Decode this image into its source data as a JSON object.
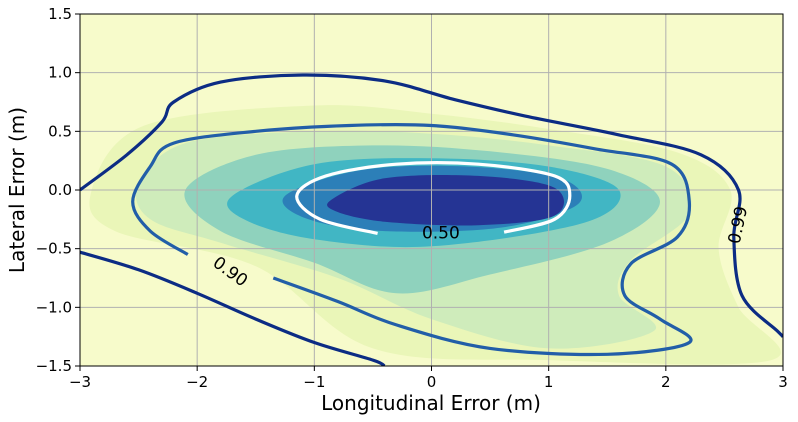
{
  "chart_data": {
    "type": "contour",
    "xlabel": "Longitudinal Error (m)",
    "ylabel": "Lateral Error (m)",
    "xlim": [
      -3,
      3
    ],
    "ylim": [
      -1.5,
      1.5
    ],
    "x_ticks": [
      -3,
      -2,
      -1,
      0,
      1,
      2,
      3
    ],
    "x_tick_labels": [
      "−3",
      "−2",
      "−1",
      "0",
      "1",
      "2",
      "3"
    ],
    "y_ticks": [
      -1.5,
      -1.0,
      -0.5,
      0.0,
      0.5,
      1.0,
      1.5
    ],
    "y_tick_labels": [
      "−1.5",
      "−1.0",
      "−0.5",
      "0.0",
      "0.5",
      "1.0",
      "1.5"
    ],
    "grid": true,
    "colormap": "YlGnBu",
    "background_color": "#f7fbcb",
    "filled_levels": [
      {
        "color": "#eaf6b8",
        "points": [
          [
            -2.45,
            0.55
          ],
          [
            -1.0,
            0.72
          ],
          [
            0.0,
            0.65
          ],
          [
            1.0,
            0.52
          ],
          [
            2.1,
            0.32
          ],
          [
            2.55,
            0.0
          ],
          [
            2.45,
            -0.5
          ],
          [
            2.62,
            -1.0
          ],
          [
            2.9,
            -1.45
          ],
          [
            1.0,
            -1.45
          ],
          [
            -0.5,
            -1.35
          ],
          [
            -1.5,
            -0.65
          ],
          [
            -2.7,
            -0.35
          ],
          [
            -2.9,
            0.0
          ]
        ]
      },
      {
        "color": "#cfecbb",
        "points": [
          [
            -2.5,
            0.05
          ],
          [
            -2.1,
            0.4
          ],
          [
            -1.0,
            0.5
          ],
          [
            0.0,
            0.48
          ],
          [
            1.0,
            0.38
          ],
          [
            2.0,
            0.2
          ],
          [
            2.2,
            -0.2
          ],
          [
            1.7,
            -0.6
          ],
          [
            1.6,
            -0.9
          ],
          [
            1.9,
            -1.2
          ],
          [
            1.0,
            -1.35
          ],
          [
            0.0,
            -1.1
          ],
          [
            -0.8,
            -0.75
          ],
          [
            -1.8,
            -0.45
          ],
          [
            -2.4,
            -0.25
          ]
        ]
      },
      {
        "color": "#8fd2bd",
        "points": [
          [
            -2.1,
            0.0
          ],
          [
            -1.5,
            0.3
          ],
          [
            -0.5,
            0.38
          ],
          [
            0.5,
            0.33
          ],
          [
            1.5,
            0.18
          ],
          [
            1.95,
            -0.1
          ],
          [
            1.5,
            -0.45
          ],
          [
            0.5,
            -0.72
          ],
          [
            -0.3,
            -0.88
          ],
          [
            -1.0,
            -0.62
          ],
          [
            -1.8,
            -0.35
          ]
        ]
      },
      {
        "color": "#41b6c4",
        "points": [
          [
            -1.7,
            -0.05
          ],
          [
            -1.0,
            0.22
          ],
          [
            0.0,
            0.27
          ],
          [
            1.0,
            0.2
          ],
          [
            1.6,
            0.0
          ],
          [
            1.3,
            -0.28
          ],
          [
            0.0,
            -0.48
          ],
          [
            -1.0,
            -0.42
          ],
          [
            -1.6,
            -0.25
          ]
        ]
      },
      {
        "color": "#2c7fb8",
        "points": [
          [
            -1.25,
            -0.05
          ],
          [
            -0.6,
            0.17
          ],
          [
            0.3,
            0.2
          ],
          [
            1.1,
            0.1
          ],
          [
            1.25,
            -0.12
          ],
          [
            0.6,
            -0.32
          ],
          [
            -0.4,
            -0.35
          ],
          [
            -1.05,
            -0.25
          ]
        ]
      },
      {
        "color": "#253494",
        "points": [
          [
            -0.85,
            -0.08
          ],
          [
            -0.4,
            0.1
          ],
          [
            0.4,
            0.12
          ],
          [
            1.05,
            0.02
          ],
          [
            1.05,
            -0.22
          ],
          [
            0.4,
            -0.3
          ],
          [
            -0.4,
            -0.27
          ],
          [
            -0.82,
            -0.18
          ]
        ]
      }
    ],
    "contour_lines": [
      {
        "level": 0.99,
        "label": "0.99",
        "color": "#0c2c84",
        "width": 3.2,
        "closed": false,
        "points": [
          [
            -3.0,
            0.0
          ],
          [
            -2.6,
            0.3
          ],
          [
            -2.3,
            0.58
          ],
          [
            -2.2,
            0.75
          ],
          [
            -1.8,
            0.92
          ],
          [
            -1.1,
            0.98
          ],
          [
            -0.4,
            0.93
          ],
          [
            0.2,
            0.77
          ],
          [
            0.8,
            0.63
          ],
          [
            1.6,
            0.47
          ],
          [
            2.3,
            0.3
          ],
          [
            2.62,
            0.0
          ],
          [
            2.58,
            -0.4
          ],
          [
            2.65,
            -0.9
          ],
          [
            2.95,
            -1.2
          ],
          [
            3.0,
            -1.25
          ]
        ]
      },
      {
        "level": 0.99,
        "label": "",
        "color": "#0c2c84",
        "width": 3.2,
        "closed": false,
        "points": [
          [
            -3.0,
            -0.53
          ],
          [
            -2.5,
            -0.68
          ],
          [
            -2.0,
            -0.88
          ],
          [
            -1.5,
            -1.1
          ],
          [
            -1.0,
            -1.3
          ],
          [
            -0.5,
            -1.45
          ],
          [
            -0.4,
            -1.5
          ]
        ]
      },
      {
        "level": 0.9,
        "label": "0.90",
        "color": "#225ea8",
        "width": 3.2,
        "closed": false,
        "points": [
          [
            -2.08,
            -0.55
          ],
          [
            -2.4,
            -0.35
          ],
          [
            -2.55,
            -0.1
          ],
          [
            -2.4,
            0.2
          ],
          [
            -2.2,
            0.4
          ],
          [
            -1.5,
            0.5
          ],
          [
            -0.7,
            0.55
          ],
          [
            0.0,
            0.55
          ],
          [
            0.7,
            0.47
          ],
          [
            1.4,
            0.35
          ],
          [
            2.05,
            0.22
          ],
          [
            2.2,
            -0.1
          ],
          [
            2.1,
            -0.4
          ],
          [
            1.7,
            -0.63
          ],
          [
            1.65,
            -0.9
          ],
          [
            1.95,
            -1.1
          ],
          [
            2.2,
            -1.3
          ],
          [
            1.5,
            -1.4
          ],
          [
            0.5,
            -1.35
          ],
          [
            -0.3,
            -1.15
          ],
          [
            -0.8,
            -0.95
          ],
          [
            -1.35,
            -0.75
          ]
        ]
      },
      {
        "level": 0.5,
        "label": "0.50",
        "color": "#ffffff",
        "width": 3.2,
        "closed": false,
        "points": [
          [
            0.62,
            -0.36
          ],
          [
            1.05,
            -0.25
          ],
          [
            1.18,
            -0.05
          ],
          [
            1.05,
            0.12
          ],
          [
            0.4,
            0.22
          ],
          [
            -0.3,
            0.22
          ],
          [
            -0.9,
            0.12
          ],
          [
            -1.15,
            -0.05
          ],
          [
            -0.95,
            -0.25
          ],
          [
            -0.46,
            -0.37
          ]
        ]
      }
    ],
    "contour_label_positions": [
      {
        "text": "0.50",
        "x": 0.08,
        "y": -0.37,
        "rotate": 0
      },
      {
        "text": "0.90",
        "x": -1.72,
        "y": -0.7,
        "rotate": 36
      },
      {
        "text": "0.99",
        "x": 2.62,
        "y": -0.3,
        "rotate": -78
      }
    ]
  }
}
